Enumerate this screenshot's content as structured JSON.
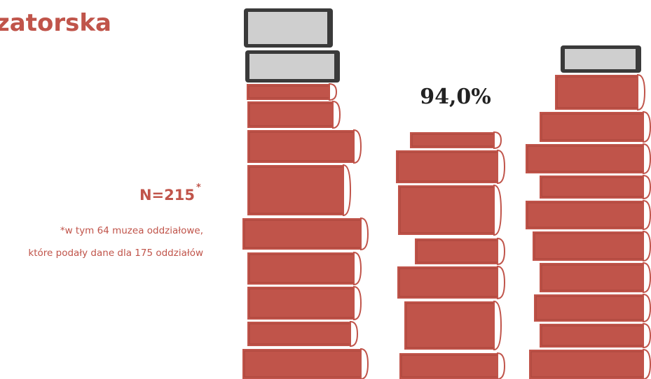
{
  "header": {
    "title": "zatorska"
  },
  "sample": {
    "label": "N=215",
    "marker": "*"
  },
  "footnote": {
    "lines": [
      "*w tym 64 muzea oddziałowe,",
      "które podały dane dla 175 oddziałów"
    ]
  },
  "highlight": {
    "value_label": "94,0%"
  }
}
